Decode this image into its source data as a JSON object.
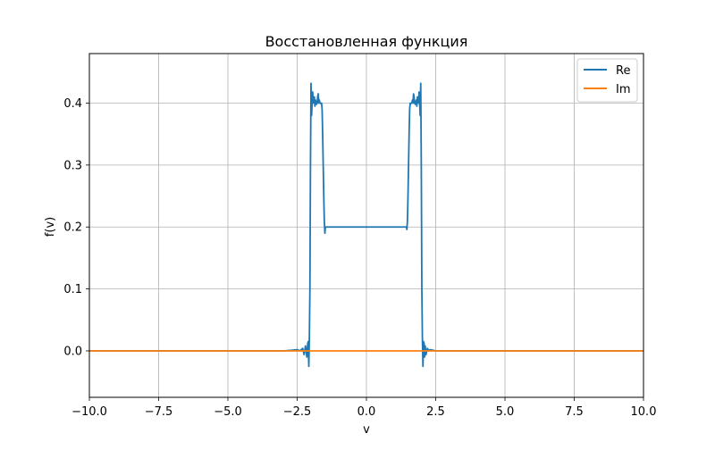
{
  "chart_data": {
    "type": "line",
    "title": "Восстановленная функция",
    "xlabel": "v",
    "ylabel": "f(v)",
    "xlim": [
      -10.0,
      10.0
    ],
    "ylim": [
      -0.075,
      0.48
    ],
    "xticks": [
      -10.0,
      -7.5,
      -5.0,
      -2.5,
      0.0,
      2.5,
      5.0,
      7.5,
      10.0
    ],
    "xtick_labels": [
      "−10.0",
      "−7.5",
      "−5.0",
      "−2.5",
      "0.0",
      "2.5",
      "5.0",
      "7.5",
      "10.0"
    ],
    "yticks": [
      0.0,
      0.1,
      0.2,
      0.3,
      0.4
    ],
    "ytick_labels": [
      "0.0",
      "0.1",
      "0.2",
      "0.3",
      "0.4"
    ],
    "grid": true,
    "legend_position": "top-right",
    "series": [
      {
        "name": "Re",
        "color": "#1f77b4",
        "x": [
          -10.0,
          -5.0,
          -4.0,
          -3.0,
          -2.7,
          -2.5,
          -2.4,
          -2.3,
          -2.25,
          -2.2,
          -2.15,
          -2.12,
          -2.1,
          -2.08,
          -2.06,
          -2.04,
          -2.02,
          -2.0,
          -1.98,
          -1.96,
          -1.94,
          -1.92,
          -1.9,
          -1.88,
          -1.86,
          -1.84,
          -1.82,
          -1.8,
          -1.78,
          -1.76,
          -1.74,
          -1.72,
          -1.7,
          -1.68,
          -1.66,
          -1.64,
          -1.62,
          -1.6,
          -1.58,
          -1.56,
          -1.54,
          -1.52,
          -1.5,
          -1.48,
          -1.46,
          -1.44,
          -1.4,
          -1.2,
          -1.0,
          -0.5,
          0.0,
          0.5,
          1.0,
          1.2,
          1.4,
          1.44,
          1.46,
          1.48,
          1.5,
          1.52,
          1.54,
          1.56,
          1.58,
          1.6,
          1.62,
          1.64,
          1.66,
          1.68,
          1.7,
          1.72,
          1.74,
          1.76,
          1.78,
          1.8,
          1.82,
          1.84,
          1.86,
          1.88,
          1.9,
          1.92,
          1.94,
          1.96,
          1.98,
          2.0,
          2.02,
          2.04,
          2.06,
          2.08,
          2.1,
          2.12,
          2.15,
          2.2,
          2.25,
          2.3,
          2.4,
          2.5,
          2.7,
          3.0,
          4.0,
          5.0,
          10.0
        ],
        "y": [
          0.0,
          0.0,
          0.0,
          0.0,
          0.001,
          0.002,
          0.0,
          0.004,
          -0.006,
          0.008,
          -0.01,
          0.012,
          0.015,
          -0.025,
          0.02,
          0.1,
          0.3,
          0.432,
          0.38,
          0.4,
          0.418,
          0.4,
          0.405,
          0.41,
          0.395,
          0.405,
          0.4,
          0.398,
          0.4,
          0.41,
          0.415,
          0.4,
          0.405,
          0.4,
          0.4,
          0.399,
          0.4,
          0.39,
          0.35,
          0.3,
          0.25,
          0.21,
          0.19,
          0.2,
          0.2,
          0.2,
          0.2,
          0.2,
          0.2,
          0.2,
          0.2,
          0.2,
          0.2,
          0.2,
          0.2,
          0.2,
          0.196,
          0.21,
          0.25,
          0.3,
          0.35,
          0.39,
          0.4,
          0.399,
          0.4,
          0.4,
          0.405,
          0.4,
          0.415,
          0.41,
          0.4,
          0.398,
          0.4,
          0.405,
          0.395,
          0.41,
          0.405,
          0.4,
          0.418,
          0.4,
          0.38,
          0.432,
          0.3,
          0.1,
          0.02,
          -0.025,
          0.015,
          0.012,
          -0.01,
          0.008,
          -0.006,
          0.004,
          0.0,
          0.002,
          0.001,
          0.0,
          0.0,
          0.0,
          0.0,
          0.0,
          0.0
        ]
      },
      {
        "name": "Im",
        "color": "#ff7f0e",
        "x": [
          -10.0,
          10.0
        ],
        "y": [
          0.0,
          0.0
        ]
      }
    ]
  }
}
